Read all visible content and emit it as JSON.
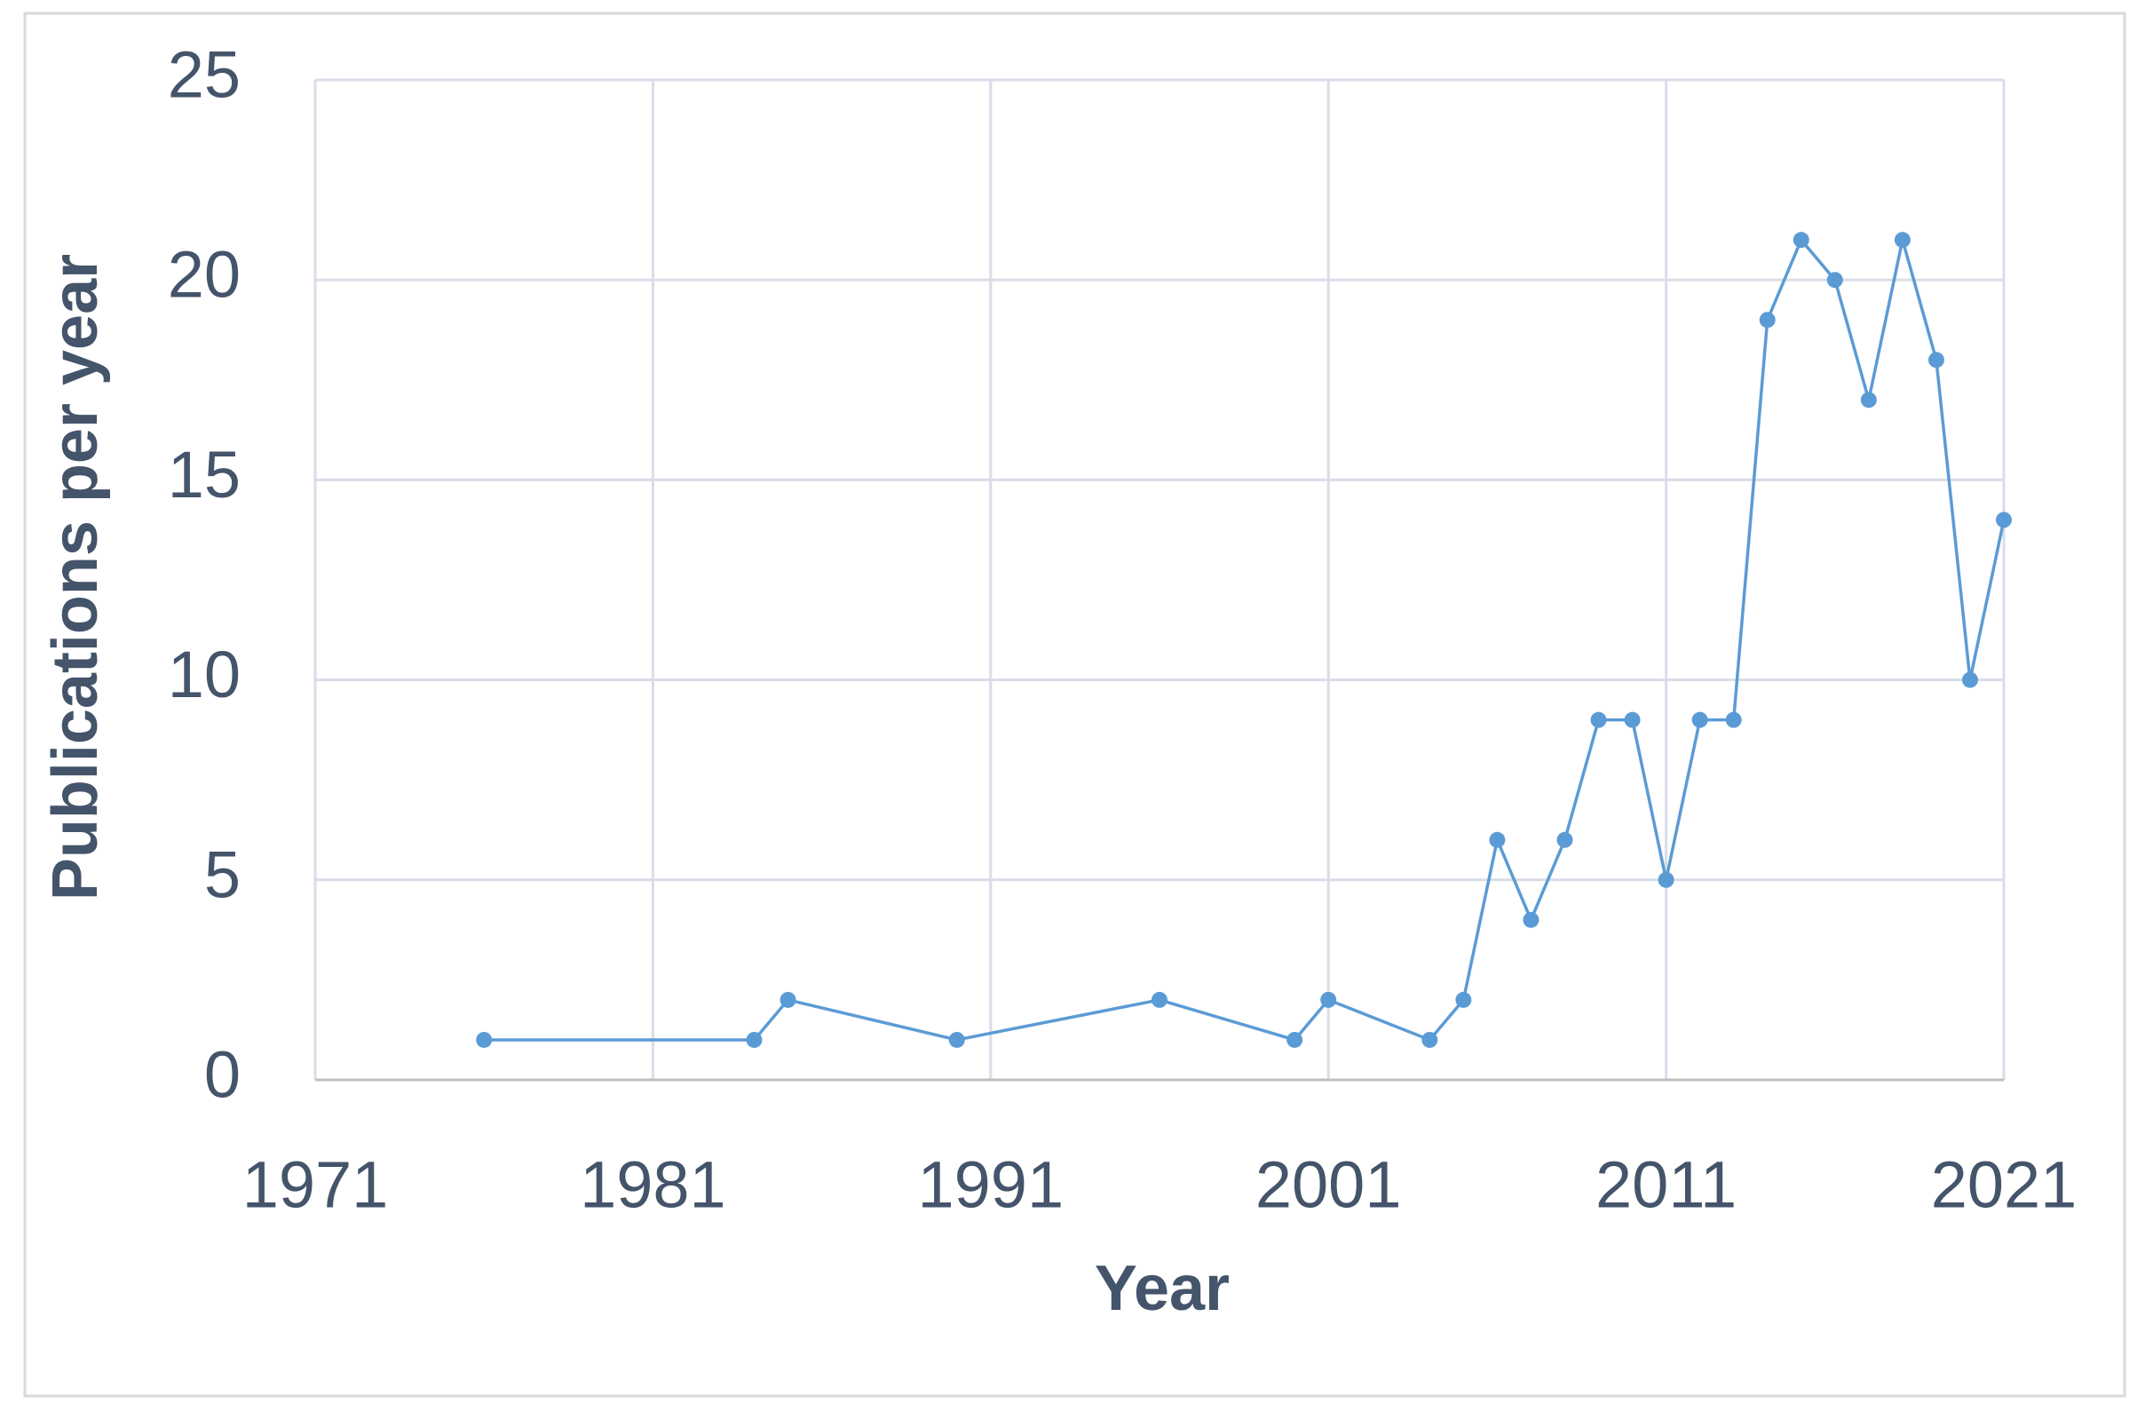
{
  "chart_data": {
    "type": "line",
    "x_label": "Year",
    "y_label": "Publications per year",
    "x": [
      1976,
      1984,
      1985,
      1990,
      1996,
      2000,
      2001,
      2004,
      2005,
      2006,
      2007,
      2008,
      2009,
      2010,
      2011,
      2012,
      2013,
      2014,
      2015,
      2016,
      2017,
      2018,
      2019,
      2020,
      2021
    ],
    "values": [
      1,
      1,
      2,
      1,
      2,
      1,
      2,
      1,
      2,
      6,
      4,
      6,
      9,
      9,
      5,
      9,
      9,
      19,
      21,
      20,
      17,
      21,
      18,
      10,
      14
    ],
    "color": "#5b9bd5",
    "xlim": [
      1971,
      2021
    ],
    "xticks": [
      1971,
      1981,
      1991,
      2001,
      2011,
      2021
    ],
    "ylim": [
      0,
      25
    ],
    "yticks": [
      0,
      5,
      10,
      15,
      20,
      25
    ],
    "grid": true
  }
}
